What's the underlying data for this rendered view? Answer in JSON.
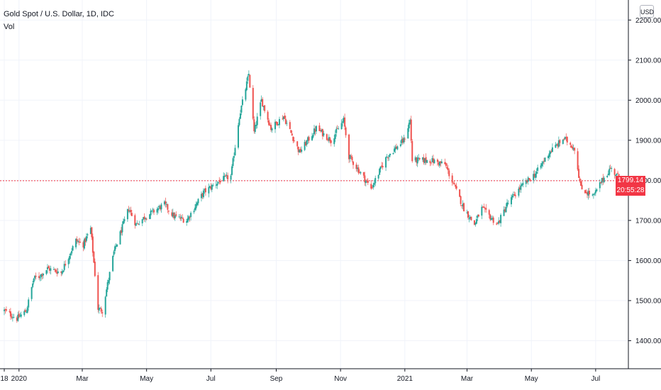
{
  "header": {
    "title": "Gold Spot / U.S. Dollar, 1D, IDC",
    "indicator": "Vol"
  },
  "currency_label": "USD",
  "last_price_label": "1799.14",
  "countdown_label": "20:55:28",
  "colors": {
    "up": "#26a69a",
    "down": "#ef5350",
    "grid": "#f0f3fa",
    "axis": "#131722",
    "last_price": "#f23645"
  },
  "chart_data": {
    "type": "candlestick",
    "title": "Gold Spot / U.S. Dollar, 1D, IDC",
    "ylim": [
      1330,
      2250
    ],
    "y_ticks": [
      "1400.00",
      "1500.00",
      "1600.00",
      "1700.00",
      "1800.00",
      "1900.00",
      "2000.00",
      "2100.00",
      "2200.00"
    ],
    "x_range": [
      "2019-12-18",
      "2021-07-28"
    ],
    "x_ticks": [
      {
        "label": "18",
        "date": "2019-12-18"
      },
      {
        "label": "2020",
        "date": "2020-01-01"
      },
      {
        "label": "Mar",
        "date": "2020-03-01"
      },
      {
        "label": "May",
        "date": "2020-05-01"
      },
      {
        "label": "Jul",
        "date": "2020-07-01"
      },
      {
        "label": "Sep",
        "date": "2020-09-01"
      },
      {
        "label": "Nov",
        "date": "2020-11-01"
      },
      {
        "label": "2021",
        "date": "2021-01-01"
      },
      {
        "label": "Mar",
        "date": "2021-03-01"
      },
      {
        "label": "May",
        "date": "2021-05-01"
      },
      {
        "label": "Jul",
        "date": "2021-07-01"
      }
    ],
    "last_price": 1799.14,
    "grid": true,
    "price_path": [
      [
        "2019-12-18",
        1475
      ],
      [
        "2019-12-30",
        1455
      ],
      [
        "2020-01-08",
        1475
      ],
      [
        "2020-01-15",
        1555
      ],
      [
        "2020-01-20",
        1560
      ],
      [
        "2020-01-28",
        1580
      ],
      [
        "2020-02-10",
        1570
      ],
      [
        "2020-02-24",
        1650
      ],
      [
        "2020-03-02",
        1640
      ],
      [
        "2020-03-09",
        1680
      ],
      [
        "2020-03-16",
        1480
      ],
      [
        "2020-03-20",
        1475
      ],
      [
        "2020-03-31",
        1620
      ],
      [
        "2020-04-14",
        1730
      ],
      [
        "2020-04-21",
        1690
      ],
      [
        "2020-04-30",
        1710
      ],
      [
        "2020-05-18",
        1740
      ],
      [
        "2020-05-27",
        1710
      ],
      [
        "2020-06-08",
        1700
      ],
      [
        "2020-06-24",
        1770
      ],
      [
        "2020-07-10",
        1800
      ],
      [
        "2020-07-20",
        1810
      ],
      [
        "2020-07-28",
        1960
      ],
      [
        "2020-08-06",
        2065
      ],
      [
        "2020-08-11",
        1920
      ],
      [
        "2020-08-18",
        2000
      ],
      [
        "2020-08-27",
        1930
      ],
      [
        "2020-09-08",
        1960
      ],
      [
        "2020-09-23",
        1870
      ],
      [
        "2020-10-09",
        1930
      ],
      [
        "2020-10-23",
        1900
      ],
      [
        "2020-11-04",
        1950
      ],
      [
        "2020-11-09",
        1860
      ],
      [
        "2020-11-30",
        1780
      ],
      [
        "2020-12-15",
        1860
      ],
      [
        "2020-12-31",
        1900
      ],
      [
        "2021-01-06",
        1950
      ],
      [
        "2021-01-08",
        1850
      ],
      [
        "2021-01-25",
        1850
      ],
      [
        "2021-02-08",
        1840
      ],
      [
        "2021-02-26",
        1730
      ],
      [
        "2021-03-08",
        1690
      ],
      [
        "2021-03-15",
        1730
      ],
      [
        "2021-03-30",
        1690
      ],
      [
        "2021-04-08",
        1740
      ],
      [
        "2021-04-20",
        1780
      ],
      [
        "2021-05-06",
        1820
      ],
      [
        "2021-05-18",
        1870
      ],
      [
        "2021-06-01",
        1905
      ],
      [
        "2021-06-11",
        1880
      ],
      [
        "2021-06-17",
        1780
      ],
      [
        "2021-06-29",
        1760
      ],
      [
        "2021-07-06",
        1795
      ],
      [
        "2021-07-15",
        1830
      ],
      [
        "2021-07-26",
        1799
      ]
    ]
  }
}
